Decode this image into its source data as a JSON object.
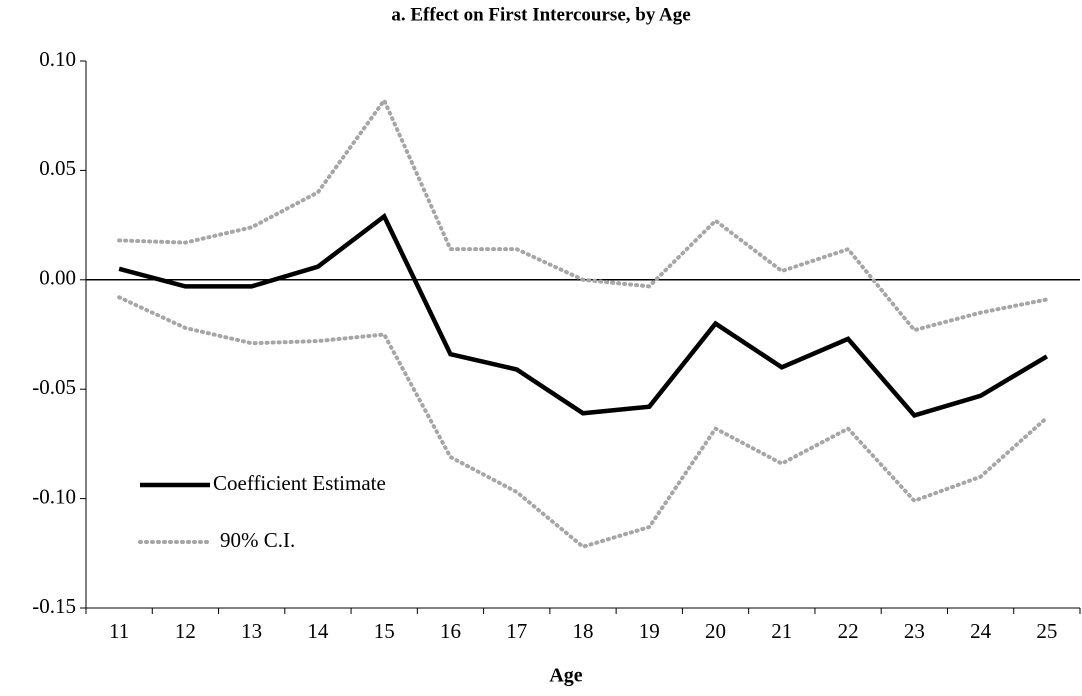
{
  "chart_data": {
    "type": "line",
    "title": "a. Effect on First Intercourse, by Age",
    "x_label": "Age",
    "categories": [
      "11",
      "12",
      "13",
      "14",
      "15",
      "16",
      "17",
      "18",
      "19",
      "20",
      "21",
      "22",
      "23",
      "24",
      "25"
    ],
    "series": [
      {
        "name": "Coefficient Estimate",
        "color": "#000000",
        "values": [
          0.005,
          -0.003,
          -0.003,
          0.006,
          0.029,
          -0.034,
          -0.041,
          -0.061,
          -0.058,
          -0.02,
          -0.04,
          -0.027,
          -0.062,
          -0.053,
          -0.035
        ]
      }
    ],
    "ci": {
      "name": "90% C.I.",
      "color": "#a6a6a6",
      "upper": [
        0.018,
        0.017,
        0.024,
        0.04,
        0.082,
        0.014,
        0.014,
        0.0,
        -0.003,
        0.027,
        0.004,
        0.014,
        -0.023,
        -0.015,
        -0.009
      ],
      "lower": [
        -0.008,
        -0.022,
        -0.029,
        -0.028,
        -0.025,
        -0.081,
        -0.097,
        -0.122,
        -0.113,
        -0.068,
        -0.084,
        -0.068,
        -0.101,
        -0.09,
        -0.063
      ]
    },
    "ylim": [
      -0.15,
      0.1
    ],
    "yticks": [
      {
        "value": -0.15,
        "label": "-0.15"
      },
      {
        "value": -0.1,
        "label": "-0.10"
      },
      {
        "value": -0.05,
        "label": "-0.05"
      },
      {
        "value": 0,
        "label": "0.00"
      },
      {
        "value": 0.05,
        "label": "0.05"
      },
      {
        "value": 0.1,
        "label": "0.10"
      }
    ],
    "legend": "lower-left"
  }
}
